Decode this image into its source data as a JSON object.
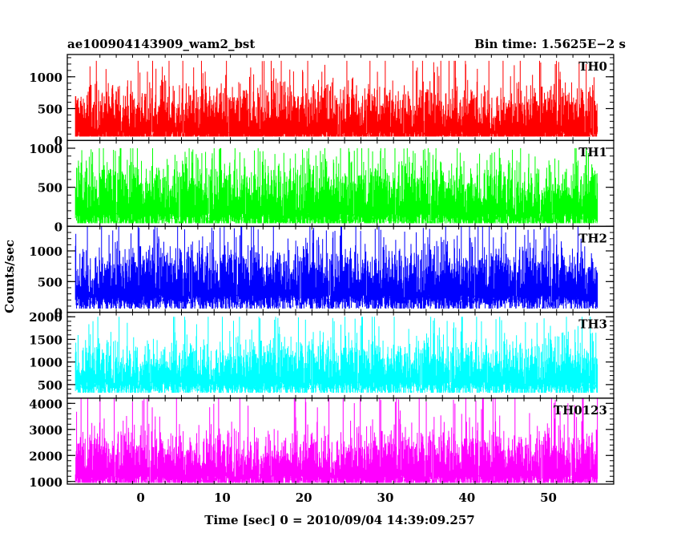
{
  "chart_data": {
    "type": "line",
    "title": "ae100904143909_wam2_bst",
    "bin_time_label": "Bin time: 1.5625E−2 s",
    "xlabel": "Time [sec] 0 = 2010/09/04 14:39:09.257",
    "ylabel": "Counts/sec",
    "xlim": [
      -9,
      58
    ],
    "x_data_range": [
      -8,
      56
    ],
    "xticks": [
      0,
      10,
      20,
      30,
      40,
      50
    ],
    "grid": false,
    "legend": "none",
    "series": [
      {
        "name": "TH0",
        "color": "#ff0000",
        "ylim": [
          0,
          1350
        ],
        "yticks": [
          0,
          500,
          1000
        ],
        "baseline": 460,
        "spread": 230,
        "min": 60,
        "max": 1250
      },
      {
        "name": "TH1",
        "color": "#00ff00",
        "ylim": [
          0,
          1100
        ],
        "yticks": [
          0,
          500,
          1000
        ],
        "baseline": 470,
        "spread": 220,
        "min": 40,
        "max": 1000
      },
      {
        "name": "TH2",
        "color": "#0000ff",
        "ylim": [
          0,
          1400
        ],
        "yticks": [
          0,
          500,
          1000
        ],
        "baseline": 640,
        "spread": 260,
        "min": 60,
        "max": 1400
      },
      {
        "name": "TH3",
        "color": "#00ffff",
        "ylim": [
          200,
          2100
        ],
        "yticks": [
          500,
          1000,
          1500,
          2000
        ],
        "baseline": 970,
        "spread": 300,
        "min": 320,
        "max": 2000
      },
      {
        "name": "TH0123",
        "color": "#ff00ff",
        "ylim": [
          900,
          4200
        ],
        "yticks": [
          1000,
          2000,
          3000,
          4000
        ],
        "baseline": 2000,
        "spread": 560,
        "min": 950,
        "max": 4200
      }
    ]
  }
}
